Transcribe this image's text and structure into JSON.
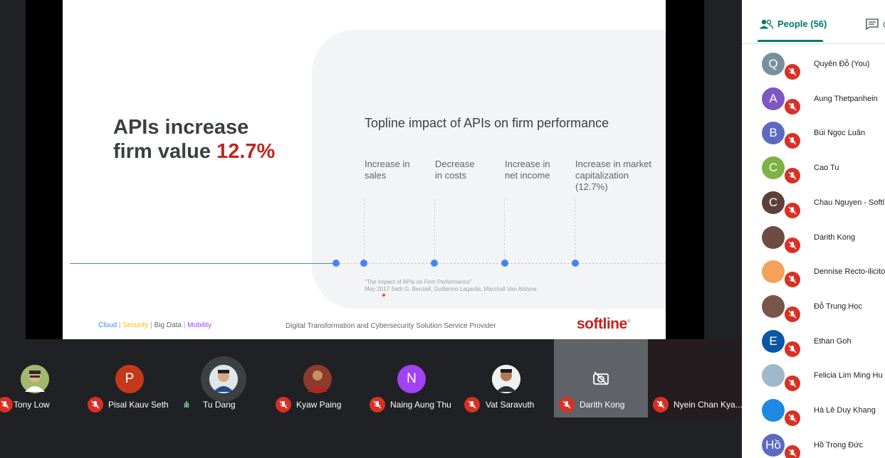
{
  "slide": {
    "title_line1": "APIs increase",
    "title_line2_prefix": "firm value ",
    "title_highlight": "12.7%",
    "chart_title": "Topline impact of APIs on firm performance",
    "metrics": [
      {
        "line1": "Increase in",
        "line2": "sales",
        "line3": ""
      },
      {
        "line1": "Decrease",
        "line2": "in costs",
        "line3": ""
      },
      {
        "line1": "Increase in",
        "line2": "net income",
        "line3": ""
      },
      {
        "line1": "Increase in market",
        "line2": "capitalization",
        "line3": "(12.7%)"
      }
    ],
    "citation_line1": "\"The Impact of APIs on Firm Performance\"",
    "citation_line2": "May 2017 Seth G. Benzell, Guillermo Lagarda, Marshall Van Alstyne",
    "footer_left": [
      "Cloud",
      "Security",
      "Big Data",
      "Mobility"
    ],
    "footer_center": "Digital Transformation and Cybersecurity Solution Service Provider",
    "logo": "softline",
    "colors": {
      "accent_red": "#c5221f",
      "blue": "#4285f4"
    }
  },
  "participants_strip": [
    {
      "name": "Tony Low",
      "kind": "photo",
      "muted": true
    },
    {
      "name": "Pisal Kauv Seth",
      "kind": "letter",
      "letter": "P",
      "color": "#c5391a",
      "muted": true
    },
    {
      "name": "Tu Dang",
      "kind": "photo-ring",
      "muted": false
    },
    {
      "name": "Kyaw Paing",
      "kind": "photo",
      "muted": true
    },
    {
      "name": "Naing Aung Thu",
      "kind": "letter",
      "letter": "N",
      "color": "#a142f4",
      "muted": true
    },
    {
      "name": "Vat Saravuth",
      "kind": "photo",
      "muted": true
    },
    {
      "name": "Darith Kong",
      "kind": "camera-off",
      "muted": true
    },
    {
      "name": "Nyein Chan Kya...",
      "kind": "video",
      "muted": true
    }
  ],
  "panel": {
    "tab_people_label": "People (56)",
    "tab_chat_label": "C",
    "people": [
      {
        "name": "Quyên Đỗ (You)",
        "letter": "Q",
        "color": "#78909c"
      },
      {
        "name": "Aung Thetpanhein",
        "letter": "A",
        "color": "#7e57c2"
      },
      {
        "name": "Bùi Ngọc Luân",
        "letter": "B",
        "color": "#5c6bc0"
      },
      {
        "name": "Cao Tu",
        "letter": "C",
        "color": "#7cb342"
      },
      {
        "name": "Chau Nguyen - Softl",
        "letter": "C",
        "color": "#5d4037"
      },
      {
        "name": "Darith Kong",
        "letter": "",
        "color": "#6d4c41"
      },
      {
        "name": "Dennise Recto-ilicito",
        "letter": "",
        "color": "#f4a259"
      },
      {
        "name": "Đỗ Trung Học",
        "letter": "",
        "color": "#795548"
      },
      {
        "name": "Ethan Goh",
        "letter": "E",
        "color": "#0b57a3"
      },
      {
        "name": "Felicia Lim Ming Hu",
        "letter": "",
        "color": "#9fb8cc"
      },
      {
        "name": "Hà Lê Duy Khang",
        "letter": "",
        "color": "#1e88e5"
      },
      {
        "name": "Hồ Trọng Đức",
        "letter": "Hồ",
        "color": "#5c6bc0"
      }
    ]
  }
}
